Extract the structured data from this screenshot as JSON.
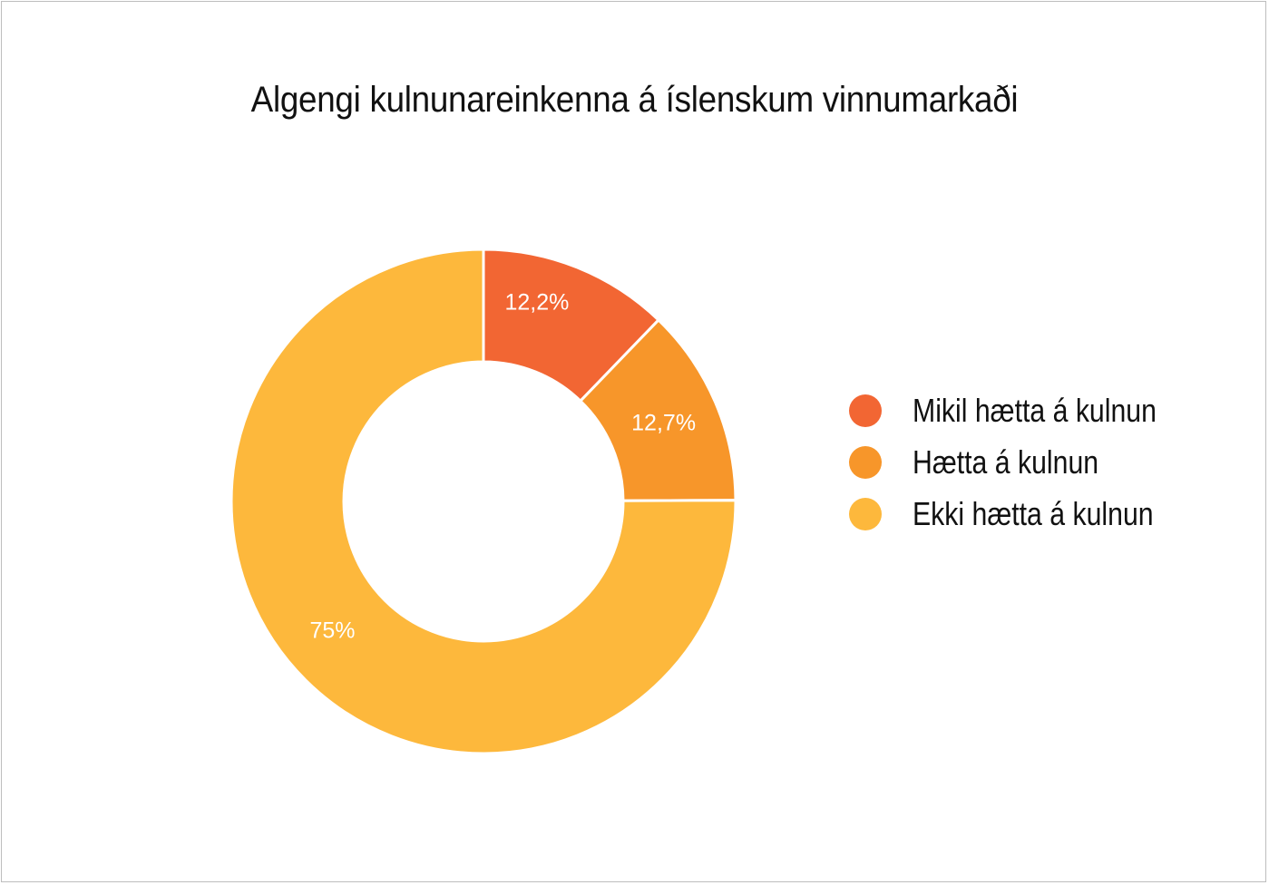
{
  "chart_data": {
    "type": "donut",
    "title": "Algengi kulnunareinkenna á íslenskum vinnumarkaði",
    "categories": [
      "Mikil hætta á kulnun",
      "Hætta á kulnun",
      "Ekki hætta á kulnun"
    ],
    "values": [
      12.2,
      12.7,
      75
    ],
    "data_labels": [
      "12,2%",
      "12,7%",
      "75%"
    ],
    "colors": [
      "#F26633",
      "#F7962A",
      "#FDB83C"
    ],
    "legend_position": "right"
  }
}
